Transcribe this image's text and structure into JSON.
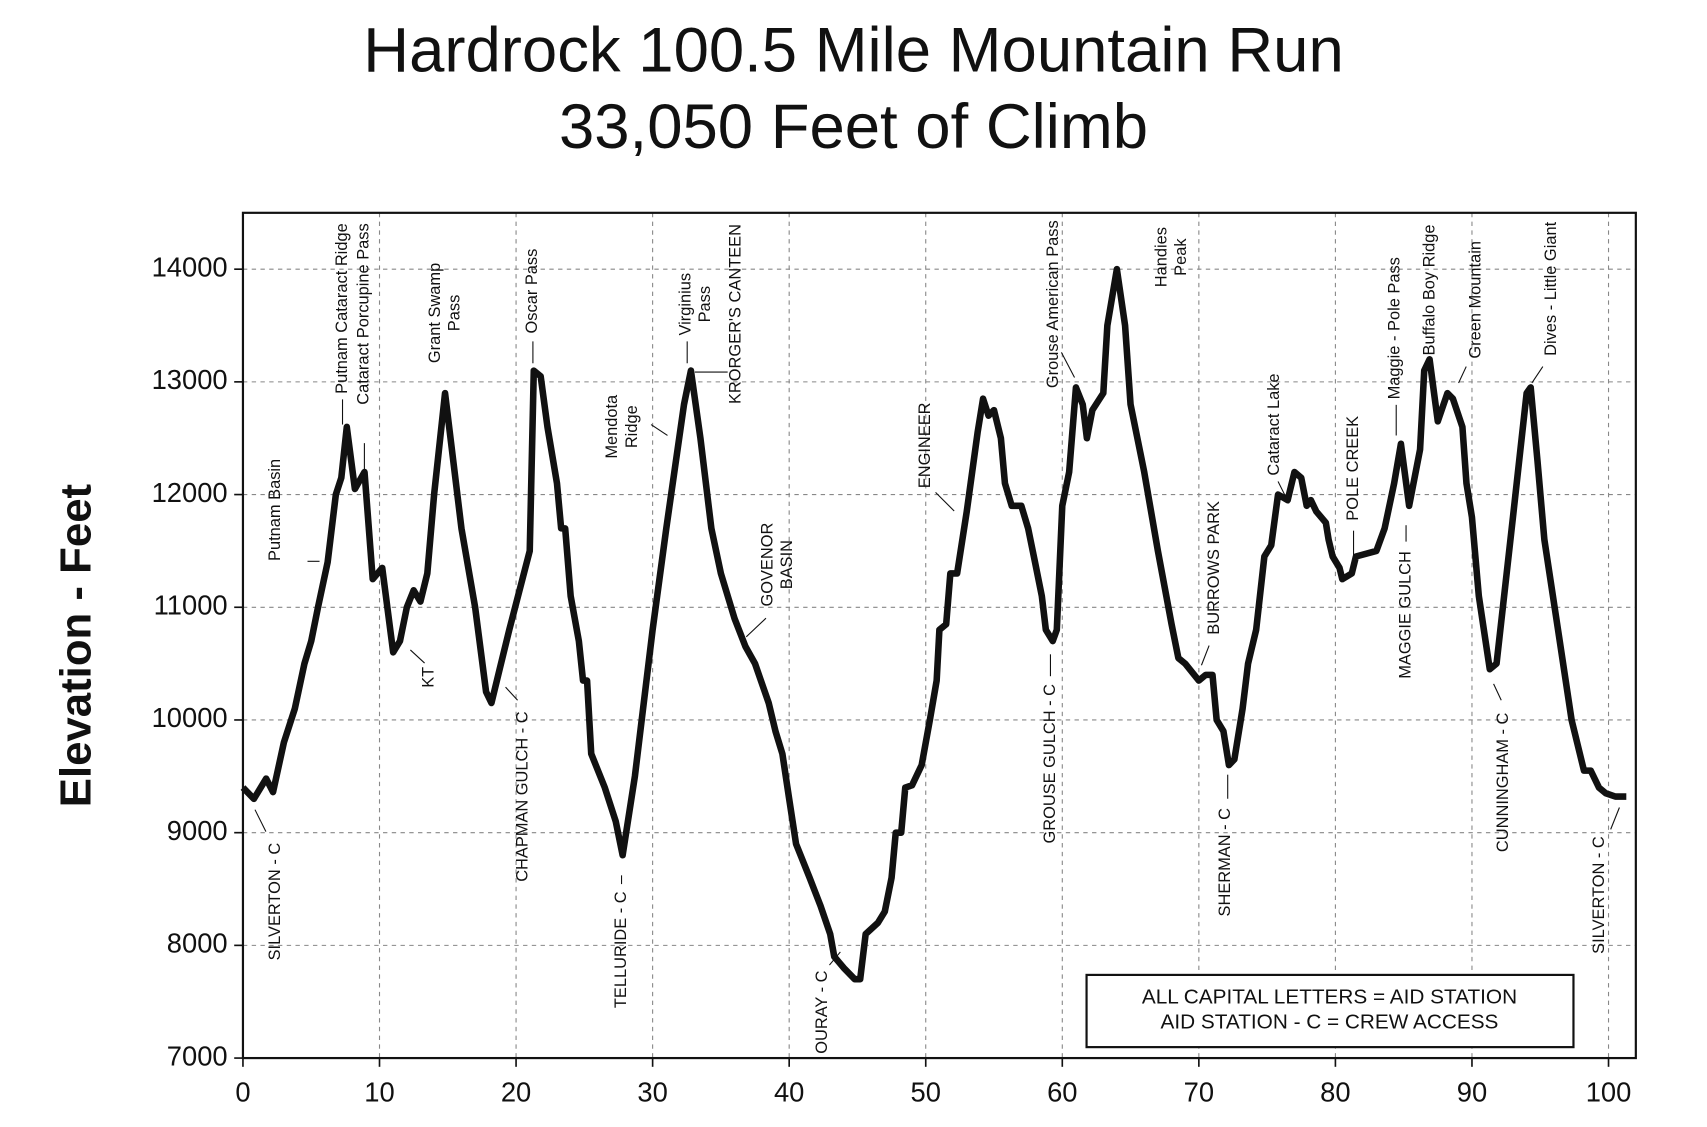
{
  "chart_data": {
    "type": "line",
    "title": [
      "Hardrock 100.5 Mile Mountain Run",
      "33,050 Feet of Climb"
    ],
    "y_label": "Elevation - Feet",
    "color": "#111111",
    "grid": true,
    "xlim": [
      0,
      102
    ],
    "ylim": [
      7000,
      14500
    ],
    "xticks": [
      0,
      10,
      20,
      30,
      40,
      50,
      60,
      70,
      80,
      90,
      100
    ],
    "yticks": [
      7000,
      8000,
      9000,
      10000,
      11000,
      12000,
      13000,
      14000
    ],
    "x": [
      0,
      0.8,
      1.7,
      2.2,
      3,
      3.8,
      4.5,
      5,
      5.5,
      6.2,
      6.8,
      7.2,
      7.6,
      8.2,
      8.9,
      9.5,
      10.2,
      11,
      11.5,
      12,
      12.5,
      13,
      13.5,
      14,
      14.8,
      15.4,
      16,
      17,
      17.8,
      18.2,
      18.8,
      19.5,
      21,
      21.3,
      21.8,
      22.3,
      23,
      23.3,
      23.6,
      24,
      24.6,
      24.9,
      25.2,
      25.5,
      26.5,
      27.3,
      27.8,
      28.7,
      30,
      31,
      32.3,
      32.8,
      33.5,
      34.3,
      35,
      36,
      36.8,
      37.5,
      38.5,
      39,
      39.5,
      40,
      40.5,
      41.5,
      42.3,
      43,
      43.3,
      44,
      44.8,
      45.2,
      45.6,
      46.5,
      47,
      47.5,
      47.8,
      48.2,
      48.5,
      49,
      49.7,
      50.3,
      50.8,
      51,
      51.5,
      51.8,
      52.3,
      53,
      53.8,
      54.2,
      54.6,
      55,
      55.5,
      55.8,
      56.3,
      57,
      57.5,
      58,
      58.5,
      58.8,
      59.3,
      59.6,
      60,
      60.5,
      61,
      61.5,
      61.8,
      62.2,
      63,
      63.3,
      64,
      64.6,
      65,
      66,
      67,
      68,
      68.5,
      69,
      70,
      70.5,
      71,
      71.3,
      71.8,
      72.2,
      72.6,
      73.2,
      73.6,
      74.2,
      74.8,
      75.3,
      75.8,
      76.5,
      77,
      77.5,
      77.9,
      78.2,
      78.6,
      79.3,
      79.5,
      79.8,
      80.3,
      80.5,
      81.2,
      81.5,
      83,
      83.6,
      84.3,
      84.8,
      85.4,
      86.2,
      86.5,
      86.9,
      87.5,
      88.2,
      88.6,
      89.3,
      89.6,
      90,
      90.5,
      91.3,
      91.8,
      93,
      94,
      94.3,
      94.8,
      95.3,
      96.3,
      97.3,
      98.2,
      98.7,
      99.3,
      99.8,
      100.5,
      101.3
    ],
    "values": [
      9400,
      9300,
      9480,
      9360,
      9800,
      10100,
      10500,
      10700,
      11000,
      11400,
      12000,
      12150,
      12600,
      12050,
      12200,
      11250,
      11350,
      10600,
      10700,
      11000,
      11150,
      11050,
      11300,
      12000,
      12900,
      12300,
      11700,
      11000,
      10250,
      10150,
      10450,
      10800,
      11500,
      13100,
      13050,
      12600,
      12100,
      11700,
      11700,
      11100,
      10700,
      10350,
      10350,
      9700,
      9400,
      9100,
      8800,
      9500,
      10800,
      11700,
      12800,
      13100,
      12500,
      11700,
      11300,
      10900,
      10650,
      10500,
      10150,
      9900,
      9700,
      9300,
      8900,
      8600,
      8350,
      8100,
      7900,
      7800,
      7700,
      7700,
      8100,
      8200,
      8300,
      8600,
      9000,
      9000,
      9400,
      9420,
      9600,
      10000,
      10350,
      10800,
      10850,
      11300,
      11300,
      11850,
      12550,
      12850,
      12700,
      12750,
      12500,
      12100,
      11900,
      11900,
      11700,
      11400,
      11100,
      10800,
      10700,
      10800,
      11900,
      12200,
      12950,
      12800,
      12500,
      12750,
      12900,
      13500,
      14000,
      13500,
      12800,
      12200,
      11500,
      10850,
      10550,
      10500,
      10350,
      10400,
      10400,
      10000,
      9900,
      9600,
      9650,
      10100,
      10500,
      10800,
      11450,
      11550,
      12000,
      11950,
      12200,
      12150,
      11900,
      11950,
      11850,
      11750,
      11600,
      11450,
      11350,
      11250,
      11300,
      11450,
      11500,
      11700,
      12100,
      12450,
      11900,
      12400,
      13100,
      13200,
      12650,
      12900,
      12850,
      12600,
      12100,
      11800,
      11100,
      10450,
      10500,
      11800,
      12900,
      12950,
      12300,
      11600,
      10800,
      10000,
      9550,
      9550,
      9400,
      9350,
      9320,
      9320
    ],
    "annotations": [
      [
        "SILVERTON - C"
      ],
      [
        "Putnam Basin"
      ],
      [
        "Putnam Cataract Ridge"
      ],
      [
        "Cataract Porcupine Pass"
      ],
      [
        "KT"
      ],
      [
        "Grant Swamp",
        "Pass"
      ],
      [
        "CHAPMAN GULCH - C"
      ],
      [
        "Oscar Pass"
      ],
      [
        "TELLURIDE - C"
      ],
      [
        "Mendota",
        "Ridge"
      ],
      [
        "Virginius",
        "Pass"
      ],
      [
        "KRORGER'S CANTEEN"
      ],
      [
        "GOVENOR",
        "BASIN"
      ],
      [
        "OURAY - C"
      ],
      [
        "ENGINEER"
      ],
      [
        "GROUSE GULCH - C"
      ],
      [
        "Grouse American Pass"
      ],
      [
        "Handies",
        "Peak"
      ],
      [
        "SHERMAN - C"
      ],
      [
        "BURROWS PARK"
      ],
      [
        "Cataract Lake"
      ],
      [
        "POLE CREEK"
      ],
      [
        "Maggie - Pole Pass"
      ],
      [
        "MAGGIE GULCH"
      ],
      [
        "Buffalo Boy Ridge"
      ],
      [
        "Green Mountain"
      ],
      [
        "CUNNINGHAM - C"
      ],
      [
        "Dives - Little Giant"
      ],
      [
        "SILVERTON - C"
      ]
    ],
    "legend_note": [
      "ALL CAPITAL LETTERS = AID STATION",
      "AID STATION - C = CREW ACCESS"
    ]
  }
}
